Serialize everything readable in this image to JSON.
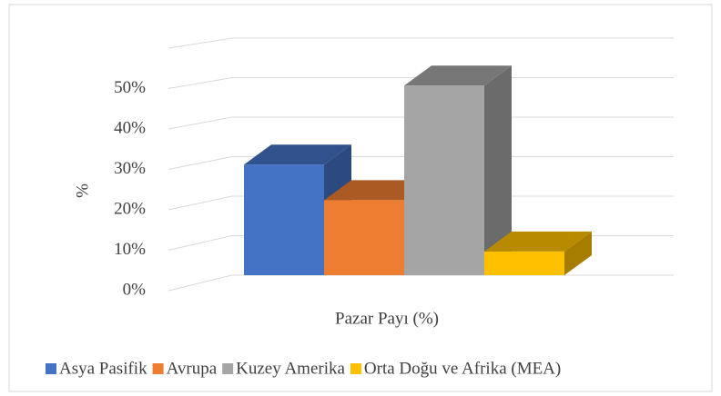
{
  "chart_data": {
    "type": "bar3d",
    "categories": [
      "Pazar Payı (%)"
    ],
    "y_label": "%",
    "series": [
      {
        "name": "Asya Pasifik",
        "color": "#4472c4",
        "values": [
          28
        ]
      },
      {
        "name": "Avrupa",
        "color": "#ed7d31",
        "values": [
          19
        ]
      },
      {
        "name": "Kuzey Amerika",
        "color": "#a5a5a5",
        "values": [
          48
        ]
      },
      {
        "name": "Orta Doğu ve Afrika (MEA)",
        "color": "#ffc000",
        "values": [
          6
        ]
      }
    ],
    "ylim": [
      0,
      60
    ],
    "yticks": [
      {
        "value": 0,
        "label": "0%"
      },
      {
        "value": 10,
        "label": "10%"
      },
      {
        "value": 20,
        "label": "20%"
      },
      {
        "value": 30,
        "label": "30%"
      },
      {
        "value": 40,
        "label": "40%"
      },
      {
        "value": 50,
        "label": "50%"
      }
    ],
    "grid": true,
    "legend": "bottom"
  }
}
